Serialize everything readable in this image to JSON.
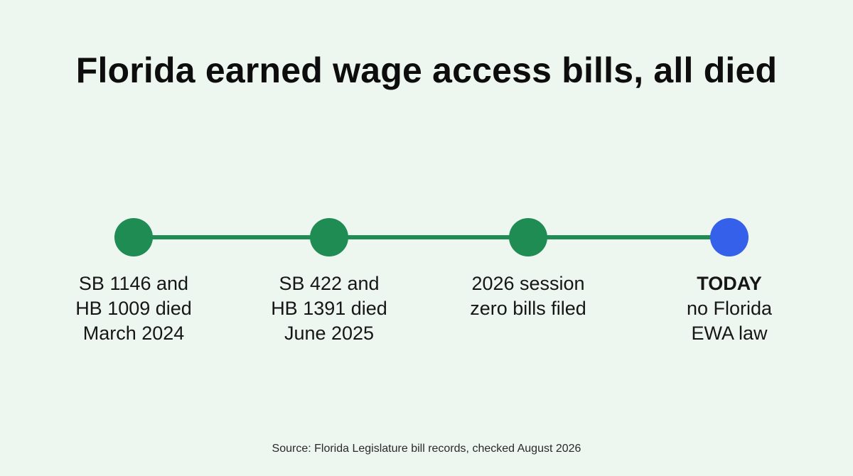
{
  "title": "Florida earned wage access bills, all died",
  "timeline": {
    "line_color": "#1e8c53",
    "events": [
      {
        "status": "past",
        "color": "#1e8c53",
        "lines": [
          "SB 1146 and",
          "HB 1009 died",
          "March 2024"
        ]
      },
      {
        "status": "past",
        "color": "#1e8c53",
        "lines": [
          "SB 422 and",
          "HB 1391 died",
          "June 2025"
        ]
      },
      {
        "status": "past",
        "color": "#1e8c53",
        "lines": [
          "2026 session",
          "zero bills filed"
        ]
      },
      {
        "status": "current",
        "color": "#3560ea",
        "heading": "TODAY",
        "lines": [
          "no Florida",
          "EWA law"
        ]
      }
    ]
  },
  "source": "Source: Florida Legislature bill records, checked August 2026"
}
